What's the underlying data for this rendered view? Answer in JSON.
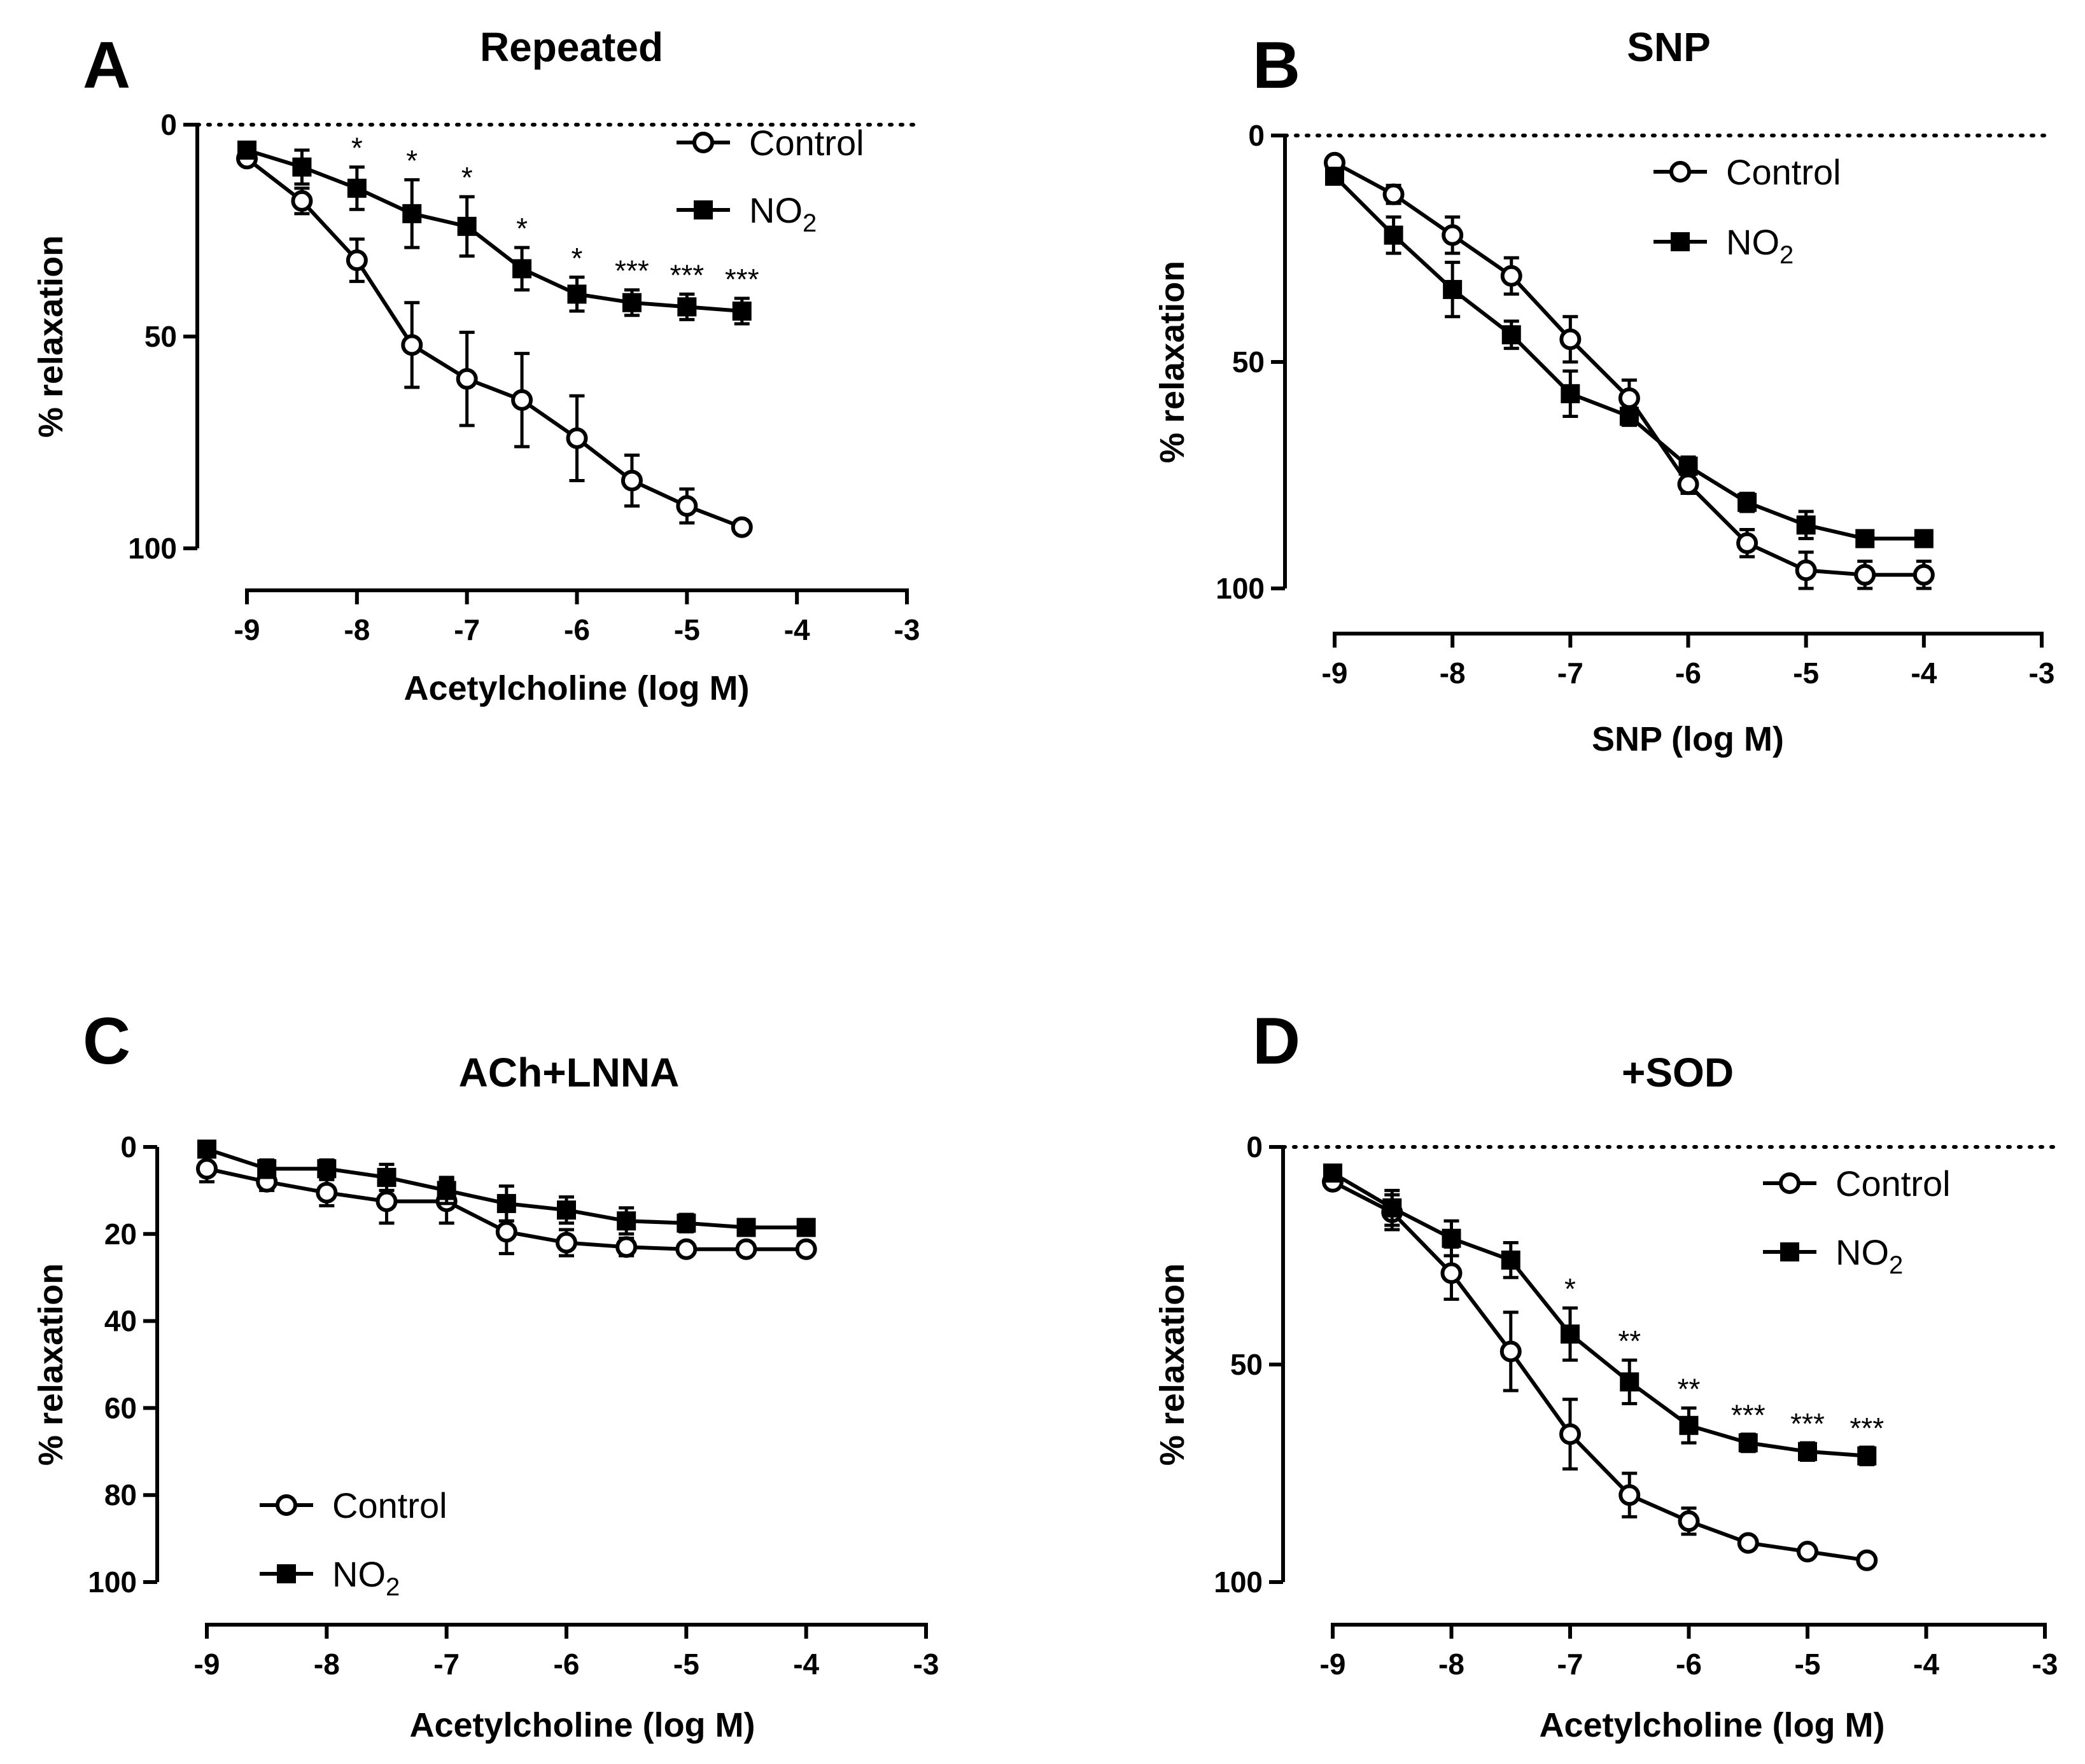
{
  "chart_data": [
    {
      "type": "line",
      "panel_label": "A",
      "title": "Repeated",
      "xlabel": "Acetylcholine (log M)",
      "ylabel": "% relaxation",
      "xlim": [
        -9,
        -3
      ],
      "ylim": [
        0,
        100
      ],
      "y_inverted": true,
      "xticks": [
        -9,
        -8,
        -7,
        -6,
        -5,
        -4,
        -3
      ],
      "xtick_labels": [
        "-9",
        "-8",
        "-7",
        "-6",
        "-5",
        "-4",
        "-3"
      ],
      "yticks": [
        0,
        50,
        100
      ],
      "ytick_labels": [
        "0",
        "50",
        "100"
      ],
      "zero_line": "dotted",
      "legend": {
        "position": "top-right",
        "entries": [
          {
            "text": "Control"
          },
          {
            "text": "NO",
            "sub": "2"
          }
        ]
      },
      "series": [
        {
          "name": "Control",
          "marker": "open-circle",
          "x": [
            -9,
            -8.5,
            -8,
            -7.5,
            -7,
            -6.5,
            -6,
            -5.5,
            -5,
            -4.5
          ],
          "y": [
            8,
            18,
            32,
            52,
            60,
            65,
            74,
            84,
            90,
            95
          ],
          "err": [
            1,
            3,
            5,
            10,
            11,
            11,
            10,
            6,
            4,
            1
          ]
        },
        {
          "name": "NO2",
          "marker": "filled-square",
          "x": [
            -9,
            -8.5,
            -8,
            -7.5,
            -7,
            -6.5,
            -6,
            -5.5,
            -5,
            -4.5
          ],
          "y": [
            6,
            10,
            15,
            21,
            24,
            34,
            40,
            42,
            43,
            44
          ],
          "err": [
            1,
            4,
            5,
            8,
            7,
            5,
            4,
            3,
            3,
            3
          ]
        }
      ],
      "annotations": [
        {
          "x": -8,
          "text": "*"
        },
        {
          "x": -7.5,
          "text": "*"
        },
        {
          "x": -7,
          "text": "*"
        },
        {
          "x": -6.5,
          "text": "*"
        },
        {
          "x": -6,
          "text": "*"
        },
        {
          "x": -5.5,
          "text": "***"
        },
        {
          "x": -5,
          "text": "***"
        },
        {
          "x": -4.5,
          "text": "***"
        }
      ]
    },
    {
      "type": "line",
      "panel_label": "B",
      "title": "SNP",
      "xlabel": "SNP (log M)",
      "ylabel": "% relaxation",
      "xlim": [
        -9,
        -3
      ],
      "ylim": [
        0,
        100
      ],
      "y_inverted": true,
      "xticks": [
        -9,
        -8,
        -7,
        -6,
        -5,
        -4,
        -3
      ],
      "xtick_labels": [
        "-9",
        "-8",
        "-7",
        "-6",
        "-5",
        "-4",
        "-3"
      ],
      "yticks": [
        0,
        50,
        100
      ],
      "ytick_labels": [
        "0",
        "50",
        "100"
      ],
      "zero_line": "dotted",
      "legend": {
        "position": "top-center",
        "entries": [
          {
            "text": "Control"
          },
          {
            "text": "NO",
            "sub": "2"
          }
        ]
      },
      "series": [
        {
          "name": "Control",
          "marker": "open-circle",
          "x": [
            -9,
            -8.5,
            -8,
            -7.5,
            -7,
            -6.5,
            -6,
            -5.5,
            -5,
            -4.5,
            -4
          ],
          "y": [
            6,
            13,
            22,
            31,
            45,
            58,
            77,
            90,
            96,
            97,
            97
          ],
          "err": [
            1,
            2,
            4,
            4,
            5,
            4,
            2,
            3,
            4,
            3,
            3
          ]
        },
        {
          "name": "NO2",
          "marker": "filled-square",
          "x": [
            -9,
            -8.5,
            -8,
            -7.5,
            -7,
            -6.5,
            -6,
            -5.5,
            -5,
            -4.5,
            -4
          ],
          "y": [
            9,
            22,
            34,
            44,
            57,
            62,
            73,
            81,
            86,
            89,
            89
          ],
          "err": [
            1,
            4,
            6,
            3,
            5,
            2,
            2,
            2,
            3,
            1,
            1
          ]
        }
      ],
      "annotations": []
    },
    {
      "type": "line",
      "panel_label": "C",
      "title": "ACh+LNNA",
      "xlabel": "Acetylcholine (log M)",
      "ylabel": "% relaxation",
      "xlim": [
        -9,
        -3
      ],
      "ylim": [
        0,
        100
      ],
      "y_inverted": true,
      "xticks": [
        -9,
        -8,
        -7,
        -6,
        -5,
        -4,
        -3
      ],
      "xtick_labels": [
        "-9",
        "-8",
        "-7",
        "-6",
        "-5",
        "-4",
        "-3"
      ],
      "yticks": [
        0,
        20,
        40,
        60,
        80,
        100
      ],
      "ytick_labels": [
        "0",
        "20",
        "40",
        "60",
        "80",
        "100"
      ],
      "zero_line": "none",
      "legend": {
        "position": "bottom-left",
        "entries": [
          {
            "text": "Control"
          },
          {
            "text": "NO",
            "sub": "2"
          }
        ]
      },
      "series": [
        {
          "name": "Control",
          "marker": "open-circle",
          "x": [
            -9,
            -8.5,
            -8,
            -7.5,
            -7,
            -6.5,
            -6,
            -5.5,
            -5,
            -4.5,
            -4
          ],
          "y": [
            5,
            8,
            10.5,
            12.5,
            12.5,
            19.5,
            22,
            23,
            23.5,
            23.5,
            23.5
          ],
          "err": [
            3,
            2,
            3,
            5,
            5,
            5,
            3,
            2,
            1,
            1,
            1
          ]
        },
        {
          "name": "NO2",
          "marker": "filled-square",
          "x": [
            -9,
            -8.5,
            -8,
            -7.5,
            -7,
            -6.5,
            -6,
            -5.5,
            -5,
            -4.5,
            -4
          ],
          "y": [
            0.5,
            5,
            5,
            7,
            10,
            13,
            14.5,
            17,
            17.5,
            18.5,
            18.5
          ],
          "err": [
            1,
            2,
            2,
            3,
            3,
            4,
            3,
            3,
            2,
            1,
            1
          ]
        }
      ],
      "annotations": []
    },
    {
      "type": "line",
      "panel_label": "D",
      "title": "+SOD",
      "xlabel": "Acetylcholine (log M)",
      "ylabel": "% relaxation",
      "xlim": [
        -9,
        -3
      ],
      "ylim": [
        0,
        100
      ],
      "y_inverted": true,
      "xticks": [
        -9,
        -8,
        -7,
        -6,
        -5,
        -4,
        -3
      ],
      "xtick_labels": [
        "-9",
        "-8",
        "-7",
        "-6",
        "-5",
        "-4",
        "-3"
      ],
      "yticks": [
        0,
        50,
        100
      ],
      "ytick_labels": [
        "0",
        "50",
        "100"
      ],
      "zero_line": "dotted",
      "legend": {
        "position": "top-right",
        "entries": [
          {
            "text": "Control"
          },
          {
            "text": "NO",
            "sub": "2"
          }
        ]
      },
      "series": [
        {
          "name": "Control",
          "marker": "open-circle",
          "x": [
            -9,
            -8.5,
            -8,
            -7.5,
            -7,
            -6.5,
            -6,
            -5.5,
            -5,
            -4.5
          ],
          "y": [
            8,
            15,
            29,
            47,
            66,
            80,
            86,
            91,
            93,
            95
          ],
          "err": [
            1,
            4,
            6,
            9,
            8,
            5,
            3,
            1,
            1,
            1
          ]
        },
        {
          "name": "NO2",
          "marker": "filled-square",
          "x": [
            -9,
            -8.5,
            -8,
            -7.5,
            -7,
            -6.5,
            -6,
            -5.5,
            -5,
            -4.5
          ],
          "y": [
            6,
            14,
            21,
            26,
            43,
            54,
            64,
            68,
            70,
            71
          ],
          "err": [
            1,
            4,
            4,
            4,
            6,
            5,
            4,
            2,
            2,
            2
          ]
        }
      ],
      "annotations": [
        {
          "x": -7,
          "text": "*"
        },
        {
          "x": -6.5,
          "text": "**"
        },
        {
          "x": -6,
          "text": "**"
        },
        {
          "x": -5.5,
          "text": "***"
        },
        {
          "x": -5,
          "text": "***"
        },
        {
          "x": -4.5,
          "text": "***"
        }
      ]
    }
  ]
}
